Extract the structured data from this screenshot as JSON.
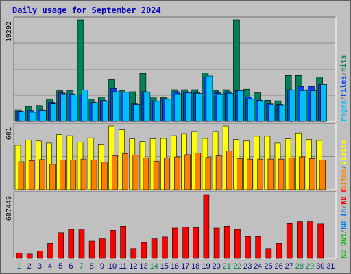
{
  "title": "Daily usage for September 2024",
  "colors": {
    "background": "#c0c0c0",
    "frame_dark": "#707070",
    "panel_bg": "#c0c0c0",
    "grid": "#8a8a8a",
    "title_text": "#0000c0",
    "hits": "#00805c",
    "files": "#0040ff",
    "pages": "#00c0ff",
    "visits": "#ffff00",
    "sites": "#ff8000",
    "kb_in": "#0080ff",
    "kb_out": "#00c000",
    "kbf": "#ff0000",
    "weekend_label": "#00805c",
    "weekday_label": "#000080"
  },
  "chart_data": [
    {
      "type": "bar",
      "panel": "hits-files-pages",
      "categories": [
        "1",
        "2",
        "3",
        "4",
        "5",
        "6",
        "7",
        "8",
        "9",
        "10",
        "11",
        "12",
        "13",
        "14",
        "15",
        "16",
        "17",
        "18",
        "19",
        "20",
        "21",
        "22",
        "23",
        "24",
        "25",
        "26",
        "27",
        "28",
        "29",
        "30",
        "31"
      ],
      "y_tick_label": "19292",
      "ylim": [
        0,
        19292
      ],
      "legend": [
        {
          "text": "Hits",
          "color_key": "hits"
        },
        {
          "text": "/",
          "color_key": "frame_dark"
        },
        {
          "text": "Files",
          "color_key": "files"
        },
        {
          "text": "/",
          "color_key": "frame_dark"
        },
        {
          "text": "Pages",
          "color_key": "pages"
        }
      ],
      "series": [
        {
          "name": "Hits",
          "values": [
            2200,
            2800,
            2900,
            4200,
            5800,
            5800,
            19292,
            4200,
            4600,
            7900,
            5800,
            5600,
            9100,
            4600,
            4500,
            6000,
            6000,
            6000,
            9200,
            5800,
            6000,
            19292,
            6100,
            5400,
            4000,
            3900,
            8700,
            8700,
            6000,
            8400,
            0
          ]
        },
        {
          "name": "Files",
          "values": [
            1900,
            2000,
            2200,
            3600,
            5400,
            5200,
            5000,
            3600,
            4000,
            6200,
            5500,
            3300,
            5600,
            3900,
            4300,
            5600,
            5500,
            5400,
            8300,
            5400,
            5600,
            5800,
            4600,
            4000,
            3300,
            3200,
            6000,
            6600,
            6600,
            7000,
            0
          ]
        },
        {
          "name": "Pages",
          "values": [
            1800,
            1700,
            2000,
            3300,
            5200,
            5000,
            5900,
            3500,
            3800,
            5600,
            5500,
            3200,
            5500,
            3800,
            4200,
            5200,
            5400,
            5300,
            8600,
            5200,
            5300,
            5800,
            4200,
            3800,
            3100,
            3000,
            5900,
            5800,
            5800,
            7000,
            0
          ]
        }
      ]
    },
    {
      "type": "bar",
      "panel": "visits-sites",
      "categories": [
        "1",
        "2",
        "3",
        "4",
        "5",
        "6",
        "7",
        "8",
        "9",
        "10",
        "11",
        "12",
        "13",
        "14",
        "15",
        "16",
        "17",
        "18",
        "19",
        "20",
        "21",
        "22",
        "23",
        "24",
        "25",
        "26",
        "27",
        "28",
        "29",
        "30",
        "31"
      ],
      "y_tick_label": "601",
      "ylim": [
        0,
        601
      ],
      "legend": [
        {
          "text": "Visits",
          "color_key": "visits"
        },
        {
          "text": "/",
          "color_key": "frame_dark"
        },
        {
          "text": "Sites",
          "color_key": "sites"
        }
      ],
      "series": [
        {
          "name": "Visits",
          "values": [
            420,
            470,
            460,
            440,
            520,
            510,
            450,
            490,
            430,
            601,
            565,
            480,
            455,
            480,
            485,
            510,
            530,
            550,
            485,
            550,
            601,
            475,
            460,
            505,
            505,
            440,
            480,
            535,
            475,
            465,
            0
          ]
        },
        {
          "name": "Sites",
          "values": [
            265,
            275,
            285,
            240,
            280,
            280,
            290,
            280,
            260,
            320,
            340,
            325,
            300,
            270,
            300,
            310,
            330,
            345,
            305,
            320,
            365,
            295,
            290,
            290,
            290,
            290,
            300,
            310,
            295,
            280,
            0
          ]
        }
      ]
    },
    {
      "type": "bar",
      "panel": "kbf-in-out",
      "categories": [
        "1",
        "2",
        "3",
        "4",
        "5",
        "6",
        "7",
        "8",
        "9",
        "10",
        "11",
        "12",
        "13",
        "14",
        "15",
        "16",
        "17",
        "18",
        "19",
        "20",
        "21",
        "22",
        "23",
        "24",
        "25",
        "26",
        "27",
        "28",
        "29",
        "30",
        "31"
      ],
      "y_tick_label": "687449",
      "ylim": [
        0,
        687449
      ],
      "legend": [
        {
          "text": "KB F",
          "color_key": "kbf"
        },
        {
          "text": "/",
          "color_key": "frame_dark"
        },
        {
          "text": "KB In",
          "color_key": "kb_in"
        },
        {
          "text": "/",
          "color_key": "frame_dark"
        },
        {
          "text": "KB Out",
          "color_key": "kb_out"
        }
      ],
      "series": [
        {
          "name": "KB F",
          "values": [
            55000,
            45000,
            78000,
            160000,
            275000,
            310000,
            305000,
            185000,
            210000,
            300000,
            345000,
            105000,
            170000,
            210000,
            230000,
            325000,
            335000,
            330000,
            687449,
            325000,
            345000,
            310000,
            235000,
            235000,
            105000,
            160000,
            375000,
            395000,
            395000,
            370000,
            0
          ]
        }
      ]
    }
  ],
  "weekend_days": [
    1,
    7,
    14,
    21,
    22,
    28,
    29
  ]
}
